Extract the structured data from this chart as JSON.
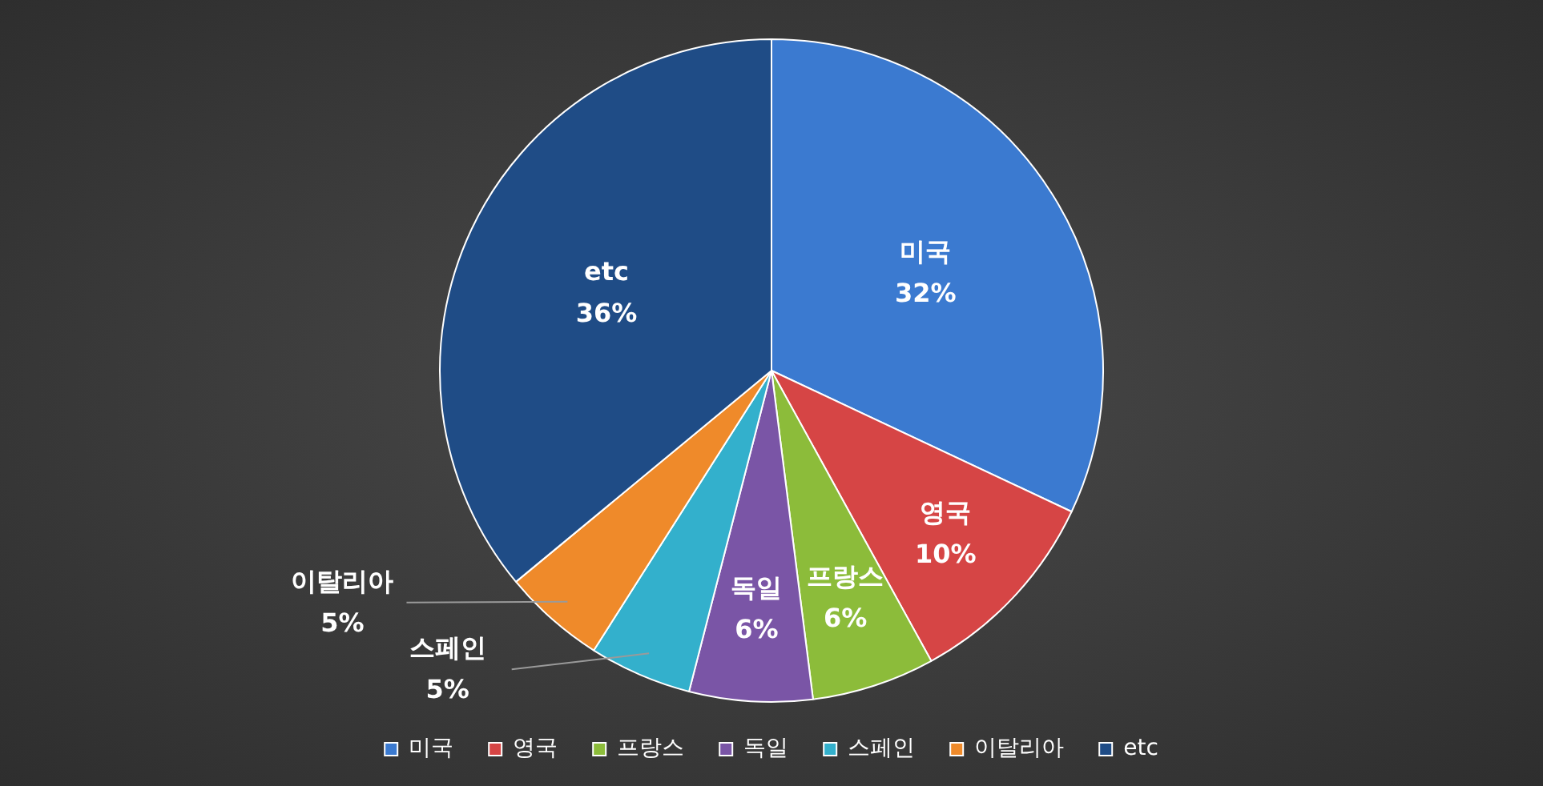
{
  "chart_data": {
    "type": "pie",
    "categories": [
      "미국",
      "영국",
      "프랑스",
      "독일",
      "스페인",
      "이탈리아",
      "etc"
    ],
    "values": [
      32,
      10,
      6,
      6,
      5,
      5,
      36
    ],
    "colors": [
      "#3b7ad0",
      "#d64545",
      "#8cbc3a",
      "#7a55a6",
      "#33b0cc",
      "#ef8a2a",
      "#1f4c86"
    ],
    "value_labels": [
      "32%",
      "10%",
      "6%",
      "6%",
      "5%",
      "5%",
      "36%"
    ],
    "legend": "bottom"
  }
}
